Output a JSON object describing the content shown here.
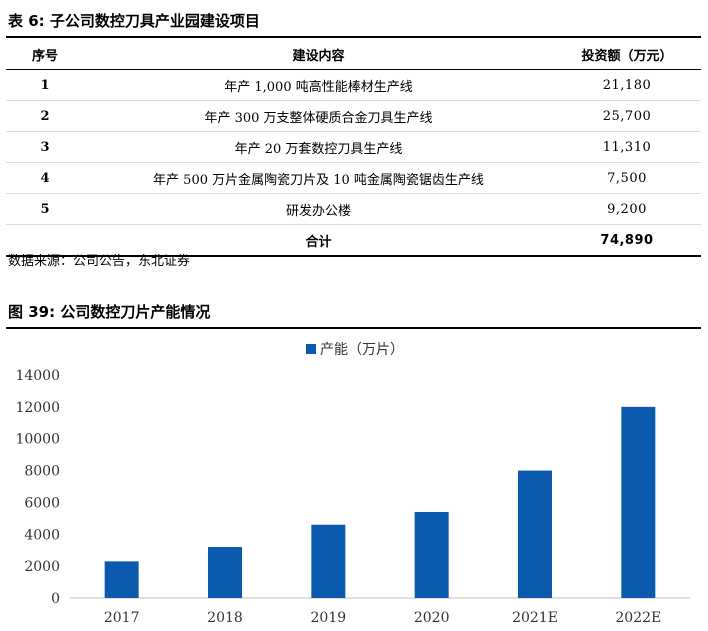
{
  "table": {
    "title": "表 6:  子公司数控刀具产业园建设项目",
    "headers": {
      "no": "序号",
      "name": "建设内容",
      "amount": "投资额（万元）"
    },
    "rows": [
      {
        "no": "1",
        "name": "年产 1,000 吨高性能棒材生产线",
        "amount": "21,180"
      },
      {
        "no": "2",
        "name": "年产 300 万支整体硬质合金刀具生产线",
        "amount": "25,700"
      },
      {
        "no": "3",
        "name": "年产 20 万套数控刀具生产线",
        "amount": "11,310"
      },
      {
        "no": "4",
        "name": "年产 500 万片金属陶瓷刀片及 10 吨金属陶瓷锯齿生产线",
        "amount": "7,500"
      },
      {
        "no": "5",
        "name": "研发办公楼",
        "amount": "9,200"
      }
    ],
    "total": {
      "label": "合计",
      "amount": "74,890"
    },
    "source": "数据来源：公司公告，东北证券"
  },
  "figure": {
    "title": "图 39:  公司数控刀片产能情况"
  },
  "chart_data": {
    "type": "bar",
    "categories": [
      "2017",
      "2018",
      "2019",
      "2020",
      "2021E",
      "2022E"
    ],
    "series": [
      {
        "name": "产能（万片）",
        "values": [
          2300,
          3200,
          4600,
          5400,
          8000,
          12000
        ],
        "color": "#0b5aad"
      }
    ],
    "ylim": [
      0,
      14000
    ],
    "yticks": [
      0,
      2000,
      4000,
      6000,
      8000,
      10000,
      12000,
      14000
    ],
    "grid": false,
    "legend": "top-center",
    "xlabel": "",
    "ylabel": ""
  }
}
